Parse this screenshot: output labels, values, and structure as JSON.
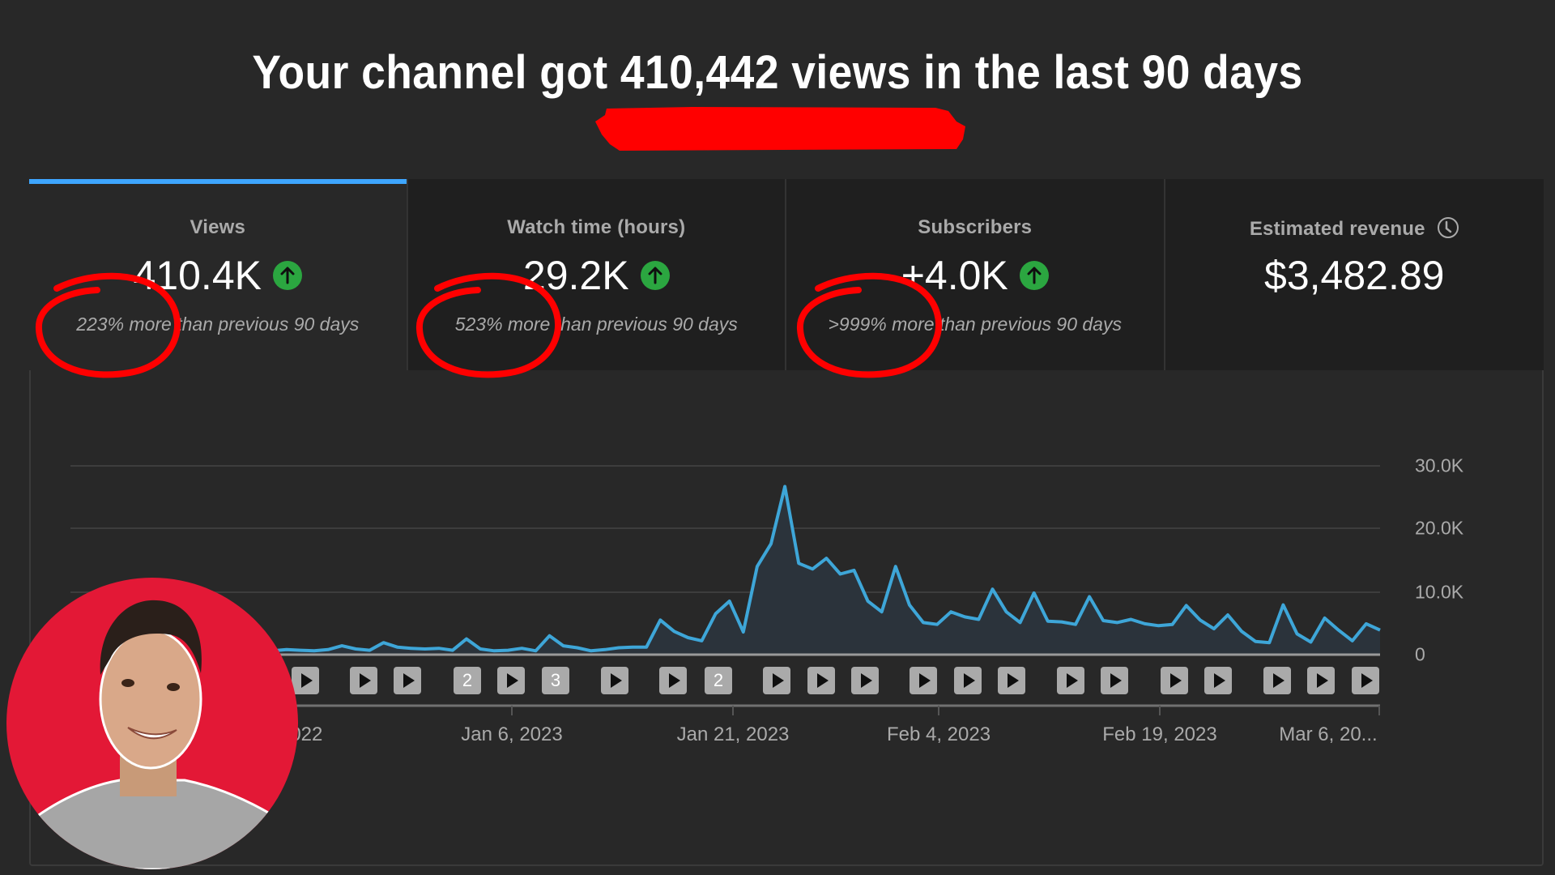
{
  "headline": {
    "text": "Your channel got 410,442 views in the last 90 days",
    "underline_color": "#ff0000"
  },
  "cards": [
    {
      "title": "Views",
      "value": "410.4K",
      "trend_icon": "arrow-up-circle-icon",
      "comparison": "223% more than previous 90 days",
      "active": true
    },
    {
      "title": "Watch time (hours)",
      "value": "29.2K",
      "trend_icon": "arrow-up-circle-icon",
      "comparison": "523% more than previous 90 days",
      "active": false
    },
    {
      "title": "Subscribers",
      "value": "+4.0K",
      "trend_icon": "arrow-up-circle-icon",
      "comparison": ">999% more than previous 90 days",
      "active": false
    },
    {
      "title": "Estimated revenue",
      "value": "$3,482.89",
      "info_icon": "clock-icon",
      "active": false
    }
  ],
  "colors": {
    "background": "#282828",
    "card_inactive": "#1f1f1f",
    "active_tab": "#3ea6ff",
    "trend_up": "#2ba640",
    "line": "#3ea6ff",
    "annotation_red": "#ff0000",
    "avatar_bg": "#e31836"
  },
  "chart": {
    "y_ticks": [
      "30.0K",
      "20.0K",
      "10.0K",
      "0"
    ],
    "x_ticks": [
      ", 2022",
      "Jan 6, 2023",
      "Jan 21, 2023",
      "Feb 4, 2023",
      "Feb 19, 2023",
      "Mar 6, 20..."
    ],
    "video_markers": [
      {
        "type": "play"
      },
      {
        "type": "play"
      },
      {
        "type": "play"
      },
      {
        "type": "count",
        "label": "2"
      },
      {
        "type": "play"
      },
      {
        "type": "count",
        "label": "3"
      },
      {
        "type": "play"
      },
      {
        "type": "play"
      },
      {
        "type": "count",
        "label": "2"
      },
      {
        "type": "play"
      },
      {
        "type": "play"
      },
      {
        "type": "play"
      },
      {
        "type": "play"
      },
      {
        "type": "play"
      },
      {
        "type": "play"
      },
      {
        "type": "play"
      },
      {
        "type": "play"
      },
      {
        "type": "play"
      },
      {
        "type": "play"
      },
      {
        "type": "play"
      },
      {
        "type": "play"
      },
      {
        "type": "play"
      }
    ]
  },
  "chart_data": {
    "type": "area",
    "title": "Views",
    "xlabel": "",
    "ylabel": "Views",
    "ylim": [
      0,
      30000
    ],
    "grid": true,
    "x_tick_labels": [
      ", 2022",
      "Jan 6, 2023",
      "Jan 21, 2023",
      "Feb 4, 2023",
      "Feb 19, 2023",
      "Mar 6, 20..."
    ],
    "y_tick_labels": [
      "0",
      "10.0K",
      "20.0K",
      "30.0K"
    ],
    "series": [
      {
        "name": "Views (daily)",
        "values": [
          200,
          300,
          500,
          800,
          1000,
          700,
          1500,
          900,
          600,
          800,
          700,
          600,
          800,
          1400,
          900,
          700,
          1900,
          1200,
          1000,
          900,
          1000,
          700,
          2500,
          900,
          600,
          700,
          1000,
          600,
          3000,
          1400,
          1100,
          600,
          800,
          1100,
          1200,
          1200,
          5500,
          3700,
          2700,
          2200,
          6500,
          8500,
          3600,
          14000,
          17600,
          26700,
          14500,
          13600,
          15300,
          12800,
          13400,
          8500,
          6800,
          14000,
          7900,
          5100,
          4800,
          6800,
          6000,
          5600,
          10400,
          6800,
          5100,
          9800,
          5300,
          5200,
          4800,
          9200,
          5400,
          5100,
          5600,
          4900,
          4600,
          4800,
          7800,
          5500,
          4100,
          6300,
          3700,
          2100,
          1900,
          7900,
          3300,
          2000,
          5800,
          3900,
          2200,
          4900,
          3900
        ]
      }
    ],
    "legend": []
  },
  "avatar": {
    "description": "Channel host avatar, red circular background"
  }
}
